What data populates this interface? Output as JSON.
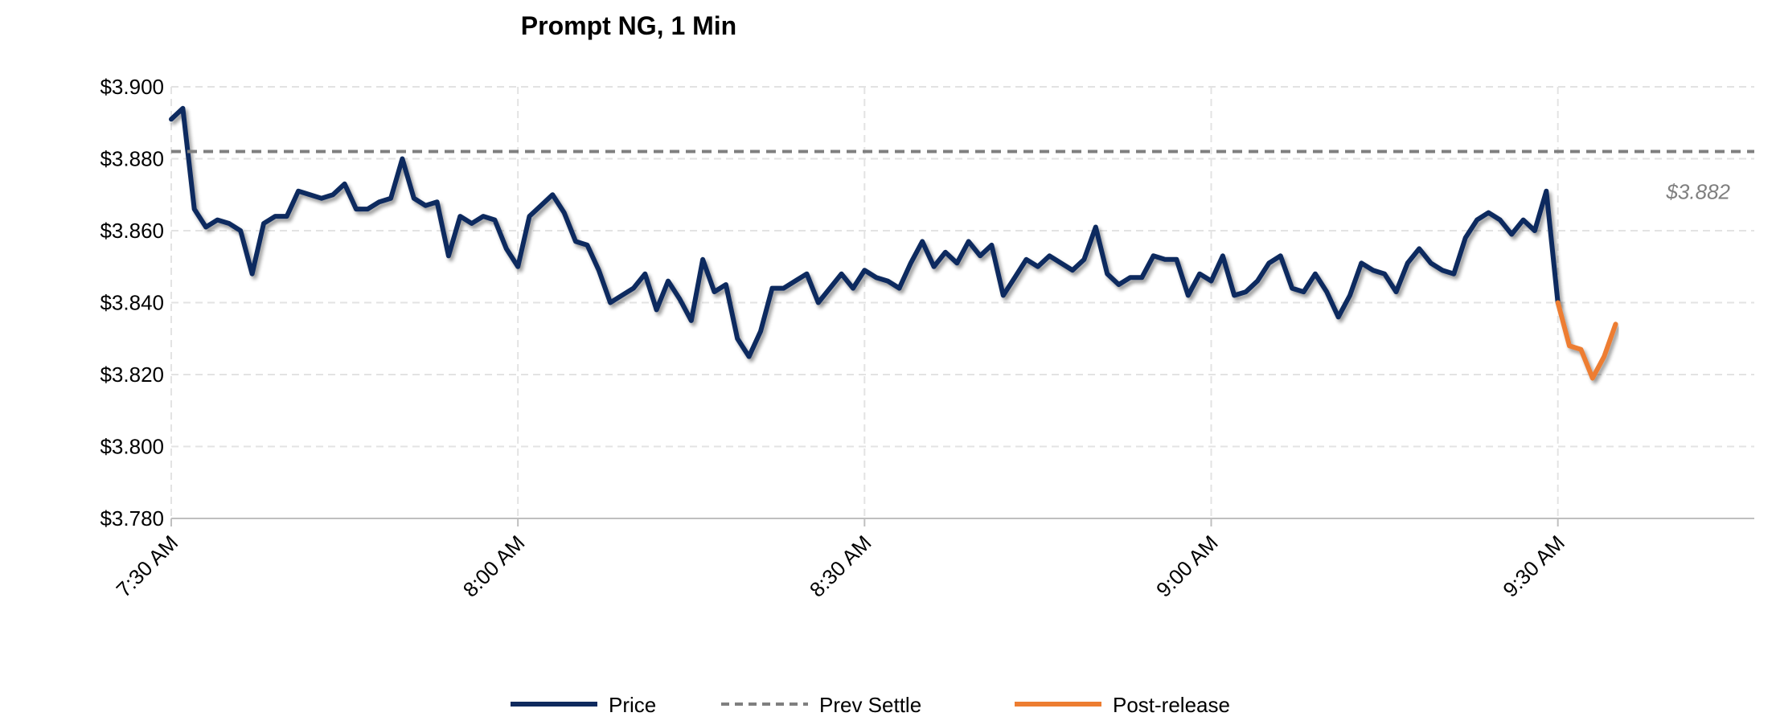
{
  "chart_data": {
    "type": "line",
    "title": "Prompt NG, 1 Min",
    "xlabel": "",
    "ylabel": "",
    "x_unit": "minutes",
    "x_ticks": [
      {
        "minute": 0,
        "label": "7:30 AM"
      },
      {
        "minute": 30,
        "label": "8:00 AM"
      },
      {
        "minute": 60,
        "label": "8:30 AM"
      },
      {
        "minute": 90,
        "label": "9:00 AM"
      },
      {
        "minute": 120,
        "label": "9:30 AM"
      }
    ],
    "xlim": [
      "7:30 AM",
      "9:47 AM"
    ],
    "ylim": [
      3.78,
      3.9
    ],
    "y_ticks": [
      {
        "value": 3.78,
        "label": "$3.780"
      },
      {
        "value": 3.8,
        "label": "$3.800"
      },
      {
        "value": 3.82,
        "label": "$3.820"
      },
      {
        "value": 3.84,
        "label": "$3.840"
      },
      {
        "value": 3.86,
        "label": "$3.860"
      },
      {
        "value": 3.88,
        "label": "$3.880"
      },
      {
        "value": 3.9,
        "label": "$3.900"
      }
    ],
    "grid": true,
    "legend_position": "bottom",
    "series": [
      {
        "name": "Price",
        "color": "#0f2a5e",
        "x": [
          "7:30 AM",
          "7:31 AM",
          "7:32 AM",
          "7:33 AM",
          "7:34 AM",
          "7:35 AM",
          "7:36 AM",
          "7:37 AM",
          "7:38 AM",
          "7:39 AM",
          "7:40 AM",
          "7:41 AM",
          "7:42 AM",
          "7:43 AM",
          "7:44 AM",
          "7:45 AM",
          "7:46 AM",
          "7:47 AM",
          "7:48 AM",
          "7:49 AM",
          "7:50 AM",
          "7:51 AM",
          "7:52 AM",
          "7:53 AM",
          "7:54 AM",
          "7:55 AM",
          "7:56 AM",
          "7:57 AM",
          "7:58 AM",
          "7:59 AM",
          "8:00 AM",
          "8:01 AM",
          "8:02 AM",
          "8:03 AM",
          "8:04 AM",
          "8:05 AM",
          "8:06 AM",
          "8:07 AM",
          "8:08 AM",
          "8:09 AM",
          "8:10 AM",
          "8:11 AM",
          "8:12 AM",
          "8:13 AM",
          "8:14 AM",
          "8:15 AM",
          "8:16 AM",
          "8:17 AM",
          "8:18 AM",
          "8:19 AM",
          "8:20 AM",
          "8:21 AM",
          "8:22 AM",
          "8:23 AM",
          "8:24 AM",
          "8:25 AM",
          "8:26 AM",
          "8:27 AM",
          "8:28 AM",
          "8:29 AM",
          "8:30 AM",
          "8:31 AM",
          "8:32 AM",
          "8:33 AM",
          "8:34 AM",
          "8:35 AM",
          "8:36 AM",
          "8:37 AM",
          "8:38 AM",
          "8:39 AM",
          "8:40 AM",
          "8:41 AM",
          "8:42 AM",
          "8:43 AM",
          "8:44 AM",
          "8:45 AM",
          "8:46 AM",
          "8:47 AM",
          "8:48 AM",
          "8:49 AM",
          "8:50 AM",
          "8:51 AM",
          "8:52 AM",
          "8:53 AM",
          "8:54 AM",
          "8:55 AM",
          "8:56 AM",
          "8:57 AM",
          "8:58 AM",
          "8:59 AM",
          "9:00 AM",
          "9:01 AM",
          "9:02 AM",
          "9:03 AM",
          "9:04 AM",
          "9:05 AM",
          "9:06 AM",
          "9:07 AM",
          "9:08 AM",
          "9:09 AM",
          "9:10 AM",
          "9:11 AM",
          "9:12 AM",
          "9:13 AM",
          "9:14 AM",
          "9:15 AM",
          "9:16 AM",
          "9:17 AM",
          "9:18 AM",
          "9:19 AM",
          "9:20 AM",
          "9:21 AM",
          "9:22 AM",
          "9:23 AM",
          "9:24 AM",
          "9:25 AM",
          "9:26 AM",
          "9:27 AM",
          "9:28 AM",
          "9:29 AM",
          "9:30 AM"
        ],
        "values": [
          3.891,
          3.894,
          3.866,
          3.861,
          3.863,
          3.862,
          3.86,
          3.848,
          3.862,
          3.864,
          3.864,
          3.871,
          3.87,
          3.869,
          3.87,
          3.873,
          3.866,
          3.866,
          3.868,
          3.869,
          3.88,
          3.869,
          3.867,
          3.868,
          3.853,
          3.864,
          3.862,
          3.864,
          3.863,
          3.855,
          3.85,
          3.864,
          3.867,
          3.87,
          3.865,
          3.857,
          3.856,
          3.849,
          3.84,
          3.842,
          3.844,
          3.848,
          3.838,
          3.846,
          3.841,
          3.835,
          3.852,
          3.843,
          3.845,
          3.83,
          3.825,
          3.832,
          3.844,
          3.844,
          3.846,
          3.848,
          3.84,
          3.844,
          3.848,
          3.844,
          3.849,
          3.847,
          3.846,
          3.844,
          3.851,
          3.857,
          3.85,
          3.854,
          3.851,
          3.857,
          3.853,
          3.856,
          3.842,
          3.847,
          3.852,
          3.85,
          3.853,
          3.851,
          3.849,
          3.852,
          3.861,
          3.848,
          3.845,
          3.847,
          3.847,
          3.853,
          3.852,
          3.852,
          3.842,
          3.848,
          3.846,
          3.853,
          3.842,
          3.843,
          3.846,
          3.851,
          3.853,
          3.844,
          3.843,
          3.848,
          3.843,
          3.836,
          3.842,
          3.851,
          3.849,
          3.848,
          3.843,
          3.851,
          3.855,
          3.851,
          3.849,
          3.848,
          3.858,
          3.863,
          3.865,
          3.863,
          3.859,
          3.863,
          3.86,
          3.871,
          3.84
        ]
      },
      {
        "name": "Prev Settle",
        "color": "#7f7f7f",
        "style": "dashed",
        "x": [
          "7:30 AM",
          "9:47 AM"
        ],
        "values": [
          3.882,
          3.882
        ]
      },
      {
        "name": "Post-release",
        "color": "#ed7d31",
        "x": [
          "9:30 AM",
          "9:31 AM",
          "9:32 AM",
          "9:33 AM",
          "9:34 AM",
          "9:35 AM"
        ],
        "values": [
          3.84,
          3.828,
          3.827,
          3.819,
          3.825,
          3.834
        ]
      }
    ],
    "annotations": [
      {
        "text": "$3.882",
        "series": "Prev Settle",
        "position": "right"
      }
    ]
  }
}
